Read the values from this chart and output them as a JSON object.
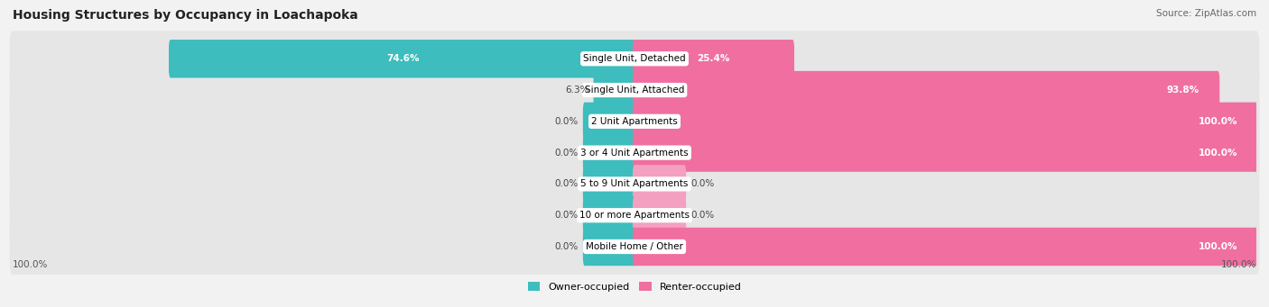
{
  "title": "Housing Structures by Occupancy in Loachapoka",
  "source": "Source: ZipAtlas.com",
  "categories": [
    "Single Unit, Detached",
    "Single Unit, Attached",
    "2 Unit Apartments",
    "3 or 4 Unit Apartments",
    "5 to 9 Unit Apartments",
    "10 or more Apartments",
    "Mobile Home / Other"
  ],
  "owner_pct": [
    74.6,
    6.3,
    0.0,
    0.0,
    0.0,
    0.0,
    0.0
  ],
  "renter_pct": [
    25.4,
    93.8,
    100.0,
    100.0,
    0.0,
    0.0,
    100.0
  ],
  "owner_small_pct": [
    0,
    0,
    0,
    0,
    10,
    8,
    0
  ],
  "renter_small_pct": [
    0,
    0,
    0,
    0,
    10,
    8,
    0
  ],
  "owner_color": "#3dbdbd",
  "renter_color": "#f06fa0",
  "renter_color_light": "#f4a0c0",
  "bg_color": "#f2f2f2",
  "row_bg_color": "#e6e6e6",
  "title_fontsize": 10,
  "source_fontsize": 7.5,
  "label_fontsize": 7.5,
  "bar_height": 0.62,
  "legend_owner": "Owner-occupied",
  "legend_renter": "Renter-occupied",
  "axis_label_left": "100.0%",
  "axis_label_right": "100.0%"
}
